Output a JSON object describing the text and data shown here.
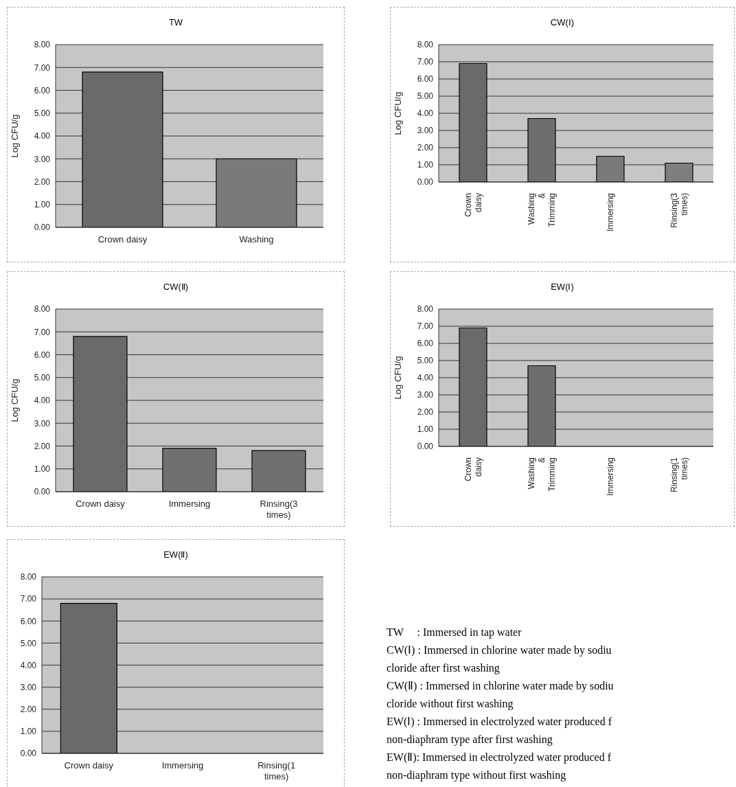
{
  "chart_data": [
    {
      "type": "bar",
      "title": "TW",
      "ylabel": "Log CFU/g",
      "categories": [
        "Crown daisy",
        "Washing"
      ],
      "values": [
        6.8,
        3.0
      ],
      "colors": [
        "#6a6a6a",
        "#7a7a7a"
      ],
      "ylim": [
        0,
        8
      ],
      "yticks": [
        {
          "value": 0,
          "label": "0.00"
        },
        {
          "value": 1,
          "label": "1.00"
        },
        {
          "value": 2,
          "label": "2.00"
        },
        {
          "value": 3,
          "label": "3.00"
        },
        {
          "value": 4,
          "label": "4.00"
        },
        {
          "value": 5,
          "label": "5.00"
        },
        {
          "value": 6,
          "label": "6.00"
        },
        {
          "value": 7,
          "label": "7.00"
        },
        {
          "value": 8,
          "label": "8.00"
        }
      ],
      "grid": "y"
    },
    {
      "type": "bar",
      "title": "CW(Ⅰ)",
      "ylabel": "Log CFU/g",
      "categories": [
        "Crown daisy",
        "Washing & Trimming",
        "Immersing",
        "Rinsing(3 times)"
      ],
      "values": [
        6.9,
        3.7,
        1.5,
        1.1
      ],
      "colors": [
        "#6a6a6a",
        "#6e6e6e",
        "#7a7a7a",
        "#7e7e7e"
      ],
      "ylim": [
        0,
        8
      ],
      "yticks": [
        {
          "value": 0,
          "label": "0.00"
        },
        {
          "value": 1,
          "label": "1.00"
        },
        {
          "value": 2,
          "label": "2.00"
        },
        {
          "value": 3,
          "label": "3.00"
        },
        {
          "value": 4,
          "label": "4.00"
        },
        {
          "value": 5,
          "label": "5.00"
        },
        {
          "value": 6,
          "label": "6.00"
        },
        {
          "value": 7,
          "label": "7.00"
        },
        {
          "value": 8,
          "label": "8.00"
        }
      ],
      "grid": "y"
    },
    {
      "type": "bar",
      "title": "CW(Ⅱ)",
      "ylabel": "Log CFU/g",
      "categories": [
        "Crown daisy",
        "Immersing",
        "Rinsing(3 times)"
      ],
      "values": [
        6.8,
        1.9,
        1.8
      ],
      "colors": [
        "#6a6a6a",
        "#707070",
        "#707070"
      ],
      "ylim": [
        0,
        8
      ],
      "yticks": [
        {
          "value": 0,
          "label": "0.00"
        },
        {
          "value": 1,
          "label": "1.00"
        },
        {
          "value": 2,
          "label": "2.00"
        },
        {
          "value": 3,
          "label": "3.00"
        },
        {
          "value": 4,
          "label": "4.00"
        },
        {
          "value": 5,
          "label": "5.00"
        },
        {
          "value": 6,
          "label": "6.00"
        },
        {
          "value": 7,
          "label": "7.00"
        },
        {
          "value": 8,
          "label": "8.00"
        }
      ],
      "grid": "y"
    },
    {
      "type": "bar",
      "title": "EW(Ⅰ)",
      "ylabel": "Log CFU/g",
      "categories": [
        "Crown daisy",
        "Washing & Trimming",
        "Immersing",
        "Rinsing(1 times)"
      ],
      "values": [
        6.9,
        4.7,
        0,
        0
      ],
      "colors": [
        "#6a6a6a",
        "#6e6e6e",
        "#7a7a7a",
        "#7a7a7a"
      ],
      "ylim": [
        0,
        8
      ],
      "yticks": [
        {
          "value": 0,
          "label": "0.00"
        },
        {
          "value": 1,
          "label": "1.00"
        },
        {
          "value": 2,
          "label": "2.00"
        },
        {
          "value": 3,
          "label": "3.00"
        },
        {
          "value": 4,
          "label": "4.00"
        },
        {
          "value": 5,
          "label": "5.00"
        },
        {
          "value": 6,
          "label": "6.00"
        },
        {
          "value": 7,
          "label": "7.00"
        },
        {
          "value": 8,
          "label": "8.00"
        }
      ],
      "grid": "y"
    },
    {
      "type": "bar",
      "title": "EW(Ⅱ)",
      "categories": [
        "Crown daisy",
        "Immersing",
        "Rinsing(1 times)"
      ],
      "values": [
        6.8,
        0,
        0
      ],
      "colors": [
        "#6a6a6a",
        "#7a7a7a",
        "#7a7a7a"
      ],
      "ylim": [
        0,
        8
      ],
      "yticks": [
        {
          "value": 0,
          "label": "0.00"
        },
        {
          "value": 1,
          "label": "1.00"
        },
        {
          "value": 2,
          "label": "2.00"
        },
        {
          "value": 3,
          "label": "3.00"
        },
        {
          "value": 4,
          "label": "4.00"
        },
        {
          "value": 5,
          "label": "5.00"
        },
        {
          "value": 6,
          "label": "6.00"
        },
        {
          "value": 7,
          "label": "7.00"
        },
        {
          "value": 8,
          "label": "8.00"
        }
      ],
      "grid": "y"
    },
    {
      "type": "other",
      "annotations": [
        "TW     : Immersed in tap water",
        "CW(Ⅰ) : Immersed in chlorine water made by sodiu",
        "cloride after first washing",
        "CW(Ⅱ) : Immersed in chlorine water made by sodiu",
        "cloride without first washing",
        "EW(Ⅰ) : Immersed in electrolyzed water produced f",
        "non-diaphram type after first washing",
        "EW(Ⅱ): Immersed in electrolyzed water produced f",
        "non-diaphram type without first washing"
      ]
    }
  ]
}
